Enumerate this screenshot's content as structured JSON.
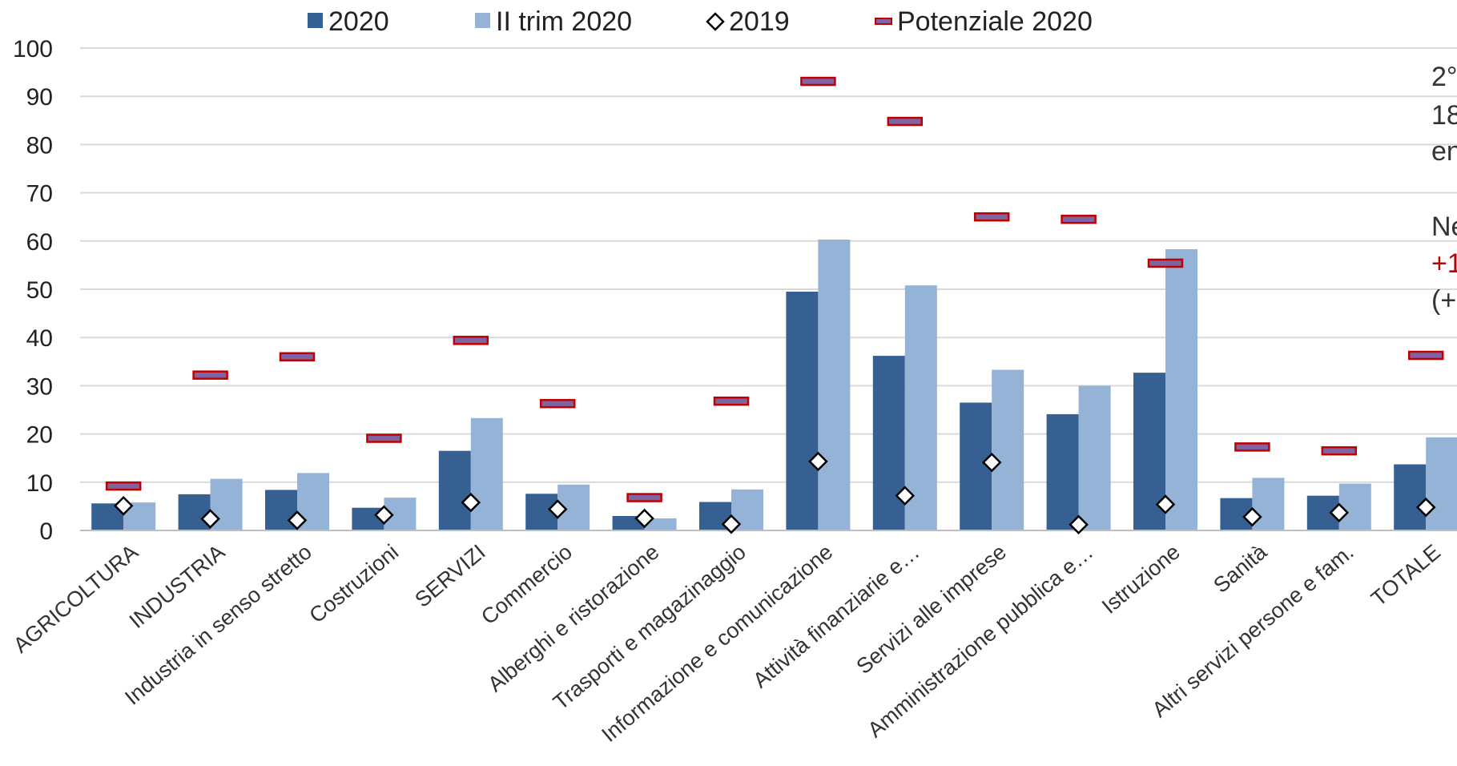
{
  "chart_data": {
    "type": "bar",
    "title": "",
    "xlabel": "",
    "ylabel": "",
    "ylim": [
      0,
      100
    ],
    "yticks": [
      0,
      10,
      20,
      30,
      40,
      50,
      60,
      70,
      80,
      90,
      100
    ],
    "grid": true,
    "legend_position": "top",
    "categories": [
      "AGRICOLTURA",
      "INDUSTRIA",
      "Industria in senso stretto",
      "Costruzioni",
      "SERVIZI",
      "Commercio",
      "Alberghi e ristorazione",
      "Trasporti e magazinaggio",
      "Informazione e comunicazione",
      "Attività finanziarie e…",
      "Servizi alle imprese",
      "Amministrazione pubblica e…",
      "Istruzione",
      "Sanità",
      "Altri servizi persone e fam.",
      "TOTALE"
    ],
    "series": [
      {
        "name": "2020",
        "kind": "bar",
        "color": "#376092",
        "values": [
          5.6,
          7.5,
          8.4,
          4.7,
          16.5,
          7.6,
          3.0,
          5.9,
          49.5,
          36.2,
          26.5,
          24.1,
          32.7,
          6.7,
          7.2,
          13.7
        ]
      },
      {
        "name": "II trim 2020",
        "kind": "bar",
        "color": "#95b3d7",
        "values": [
          5.8,
          10.7,
          11.9,
          6.8,
          23.3,
          9.5,
          2.5,
          8.5,
          60.3,
          50.8,
          33.3,
          30.0,
          58.3,
          10.9,
          9.7,
          19.3
        ]
      },
      {
        "name": "2019",
        "kind": "marker-diamond",
        "color": "#ffffff",
        "values": [
          5.1,
          2.4,
          2.1,
          3.2,
          5.8,
          4.4,
          2.5,
          1.3,
          14.3,
          7.2,
          14.1,
          1.2,
          5.4,
          2.8,
          3.7,
          4.8
        ]
      },
      {
        "name": "Potenziale 2020",
        "kind": "marker-dash",
        "color": "#c00000",
        "values": [
          9.2,
          32.2,
          36.0,
          19.1,
          39.4,
          26.3,
          6.8,
          26.8,
          93.1,
          84.8,
          65.0,
          64.5,
          55.4,
          17.3,
          16.5,
          36.3
        ]
      }
    ],
    "annotations": [
      {
        "text": "2°",
        "color": "#333333"
      },
      {
        "text": "18",
        "color": "#333333"
      },
      {
        "text": "en",
        "color": "#333333"
      },
      {
        "text": "Ne",
        "color": "#333333"
      },
      {
        "text": "+1",
        "color": "#c00000"
      },
      {
        "text": "(+",
        "color": "#333333"
      }
    ]
  }
}
